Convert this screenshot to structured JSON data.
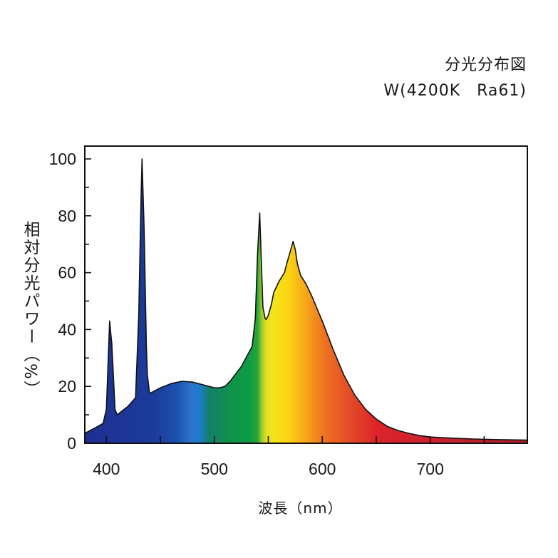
{
  "header": {
    "title": "分光分布図",
    "subtitle": "W(4200K　Ra61)"
  },
  "chart_data": {
    "type": "area",
    "title": "分光分布図",
    "subtitle": "W(4200K　Ra61)",
    "xlabel": "波長（nm）",
    "ylabel": "相対分光パワー（%）",
    "xlim": [
      380,
      790
    ],
    "ylim": [
      0,
      100
    ],
    "x_ticks": [
      400,
      500,
      600,
      700
    ],
    "y_ticks": [
      0,
      20,
      40,
      60,
      80,
      100
    ],
    "grid": false,
    "fill": "visible-spectrum gradient",
    "series": [
      {
        "x": [
          380,
          390,
          397,
          400,
          403,
          405,
          408,
          410,
          420,
          427,
          430,
          432,
          433,
          435,
          437,
          438,
          440,
          450,
          460,
          470,
          480,
          490,
          500,
          505,
          510,
          515,
          520,
          525,
          530,
          535,
          538,
          540,
          542,
          543,
          545,
          547,
          548,
          550,
          553,
          555,
          560,
          565,
          567,
          570,
          573,
          575,
          577,
          580,
          585,
          590,
          600,
          610,
          620,
          630,
          640,
          650,
          660,
          670,
          680,
          690,
          700,
          720,
          740,
          760,
          790
        ],
        "y": [
          3.5,
          5.5,
          7,
          12,
          43,
          35,
          12,
          10,
          13,
          16,
          45,
          85,
          100,
          75,
          35,
          24,
          17.5,
          19.5,
          21,
          21.8,
          21.5,
          20.5,
          19.5,
          19.5,
          20,
          22,
          24.5,
          27,
          30.5,
          34,
          44,
          66,
          81,
          70,
          48,
          44,
          43.5,
          45,
          49,
          53,
          57,
          60,
          63,
          67,
          71,
          68,
          63,
          59,
          56,
          52,
          43,
          33,
          24,
          17,
          12,
          8.5,
          6,
          4.5,
          3.5,
          2.7,
          2.2,
          1.8,
          1.5,
          1.3,
          1.1
        ]
      }
    ],
    "colors": {
      "violet": "#1d2f8f",
      "blue": "#2f6fd1",
      "green": "#11924a",
      "yellow": "#f7e218",
      "orange": "#ef7a1e",
      "red": "#d9222b"
    }
  }
}
